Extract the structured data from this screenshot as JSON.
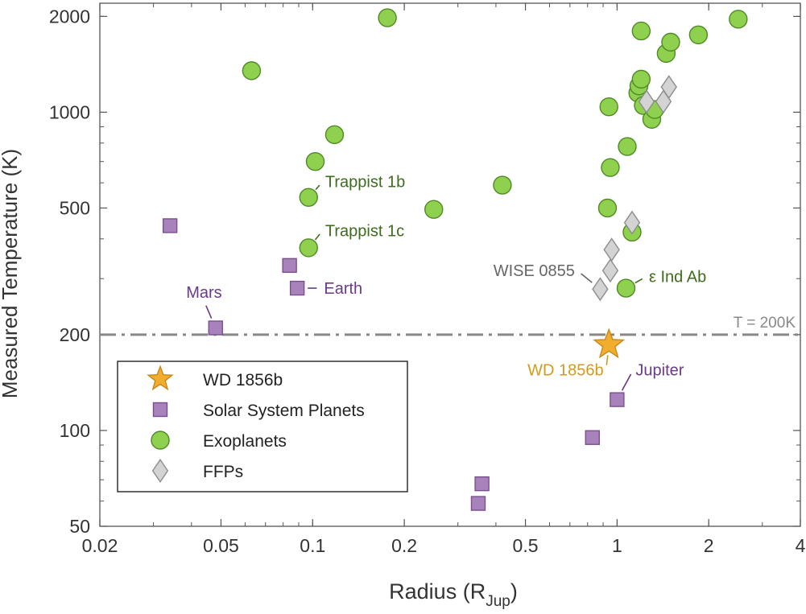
{
  "chart_data": {
    "type": "scatter",
    "xlabel": "Radius (R",
    "xlabel_sub": "Jup",
    "xlabel_close": ")",
    "ylabel": "Measured Temperature (K)",
    "x_scale": "log",
    "y_scale": "log",
    "xlim": [
      0.02,
      4
    ],
    "ylim": [
      50,
      2200
    ],
    "x_ticks": [
      {
        "value": 0.02,
        "label": "0.02"
      },
      {
        "value": 0.05,
        "label": "0.05"
      },
      {
        "value": 0.1,
        "label": "0.1"
      },
      {
        "value": 0.2,
        "label": "0.2"
      },
      {
        "value": 0.5,
        "label": "0.5"
      },
      {
        "value": 1,
        "label": "1"
      },
      {
        "value": 2,
        "label": "2"
      },
      {
        "value": 4,
        "label": "4"
      }
    ],
    "y_ticks": [
      {
        "value": 50,
        "label": "50"
      },
      {
        "value": 100,
        "label": "100"
      },
      {
        "value": 200,
        "label": "200"
      },
      {
        "value": 500,
        "label": "500"
      },
      {
        "value": 1000,
        "label": "1000"
      },
      {
        "value": 2000,
        "label": "2000"
      }
    ],
    "grid": false,
    "legend_position": "bottom-left",
    "reference_line": {
      "y": 200,
      "label": "T = 200K",
      "color": "#888888",
      "style": "dash-dot"
    },
    "series": [
      {
        "name": "WD 1856b",
        "marker": "star",
        "color": "#f0ad2e",
        "stroke": "#c8881a",
        "points": [
          {
            "x": 0.94,
            "y": 186
          }
        ]
      },
      {
        "name": "Solar System Planets",
        "marker": "square",
        "color": "#a883bb",
        "stroke": "#7a4f8f",
        "points": [
          {
            "x": 0.034,
            "y": 440
          },
          {
            "x": 0.048,
            "y": 210
          },
          {
            "x": 0.084,
            "y": 330
          },
          {
            "x": 0.089,
            "y": 280
          },
          {
            "x": 0.35,
            "y": 59
          },
          {
            "x": 0.36,
            "y": 68
          },
          {
            "x": 0.83,
            "y": 95
          },
          {
            "x": 1.0,
            "y": 125
          }
        ]
      },
      {
        "name": "Exoplanets",
        "marker": "circle",
        "color": "#8fd14f",
        "stroke": "#4f8a26",
        "points": [
          {
            "x": 0.063,
            "y": 1350
          },
          {
            "x": 0.097,
            "y": 540
          },
          {
            "x": 0.097,
            "y": 375
          },
          {
            "x": 0.102,
            "y": 700
          },
          {
            "x": 0.118,
            "y": 850
          },
          {
            "x": 0.176,
            "y": 1980
          },
          {
            "x": 0.25,
            "y": 495
          },
          {
            "x": 0.42,
            "y": 590
          },
          {
            "x": 0.93,
            "y": 500
          },
          {
            "x": 0.94,
            "y": 1040
          },
          {
            "x": 0.95,
            "y": 670
          },
          {
            "x": 1.07,
            "y": 280
          },
          {
            "x": 1.08,
            "y": 780
          },
          {
            "x": 1.12,
            "y": 420
          },
          {
            "x": 1.17,
            "y": 1150
          },
          {
            "x": 1.18,
            "y": 1210
          },
          {
            "x": 1.2,
            "y": 1270
          },
          {
            "x": 1.22,
            "y": 1050
          },
          {
            "x": 1.2,
            "y": 1800
          },
          {
            "x": 1.3,
            "y": 950
          },
          {
            "x": 1.33,
            "y": 1020
          },
          {
            "x": 1.45,
            "y": 1530
          },
          {
            "x": 1.5,
            "y": 1660
          },
          {
            "x": 1.85,
            "y": 1750
          },
          {
            "x": 2.5,
            "y": 1960
          }
        ]
      },
      {
        "name": "FFPs",
        "marker": "diamond",
        "color": "#d3d3d3",
        "stroke": "#8c8c8c",
        "points": [
          {
            "x": 0.88,
            "y": 278
          },
          {
            "x": 0.95,
            "y": 318
          },
          {
            "x": 0.96,
            "y": 370
          },
          {
            "x": 1.12,
            "y": 450
          },
          {
            "x": 1.25,
            "y": 1080
          },
          {
            "x": 1.42,
            "y": 1080
          },
          {
            "x": 1.48,
            "y": 1200
          }
        ]
      }
    ],
    "annotations": [
      {
        "text": "Trappist 1b",
        "x": 0.097,
        "y": 540,
        "color": "#3f6b1c",
        "tx": 0.108,
        "ty": 605,
        "anchor": "start"
      },
      {
        "text": "Trappist 1c",
        "x": 0.097,
        "y": 375,
        "color": "#3f6b1c",
        "tx": 0.108,
        "ty": 425,
        "anchor": "start"
      },
      {
        "text": "Earth",
        "x": 0.089,
        "y": 280,
        "color": "#6a3a87",
        "tx": 0.107,
        "ty": 280,
        "anchor": "start"
      },
      {
        "text": "Mars",
        "x": 0.048,
        "y": 210,
        "color": "#6a3a87",
        "tx": 0.044,
        "ty": 255,
        "anchor": "middle"
      },
      {
        "text": "WISE 0855",
        "x": 0.88,
        "y": 278,
        "color": "#666666",
        "tx": 0.74,
        "ty": 318,
        "anchor": "end"
      },
      {
        "text": "ε Ind Ab",
        "x": 1.07,
        "y": 280,
        "color": "#3f6b1c",
        "tx": 1.25,
        "ty": 305,
        "anchor": "start"
      },
      {
        "text": "WD 1856b",
        "x": 0.94,
        "y": 186,
        "color": "#d49a1a",
        "tx": 0.92,
        "ty": 155,
        "anchor": "end"
      },
      {
        "text": "Jupiter",
        "x": 1.0,
        "y": 125,
        "color": "#6a3a87",
        "tx": 1.13,
        "ty": 155,
        "anchor": "start"
      }
    ]
  }
}
